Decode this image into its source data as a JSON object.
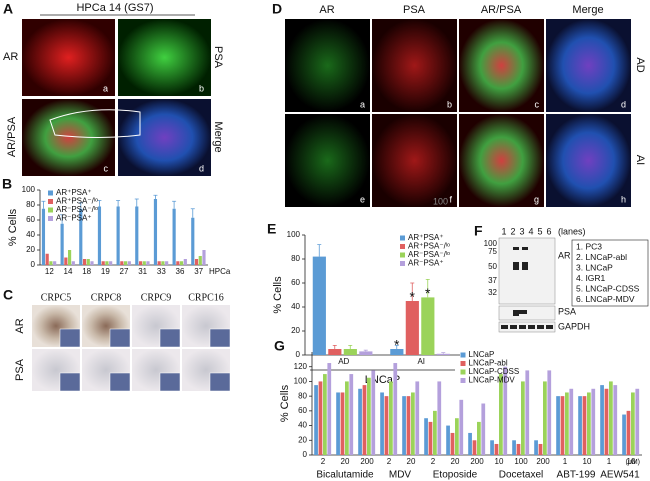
{
  "panels": {
    "A": {
      "letter": "A",
      "title": "HPCa 14 (GS7)",
      "row_labels": [
        "AR",
        "AR/PSA"
      ],
      "col_labels": [
        "PSA",
        "Merge"
      ],
      "sub_labels": [
        "a",
        "b",
        "c",
        "d"
      ]
    },
    "C": {
      "letter": "C",
      "col_labels": [
        "CRPC5",
        "CRPC8",
        "CRPC9",
        "CRPC16"
      ],
      "row_labels": [
        "AR",
        "PSA"
      ]
    },
    "D": {
      "letter": "D",
      "col_labels": [
        "AR",
        "PSA",
        "AR/PSA",
        "Merge"
      ],
      "row_labels": [
        "AD",
        "AI"
      ],
      "sub_labels": [
        "a",
        "b",
        "c",
        "d",
        "e",
        "f",
        "g",
        "h"
      ],
      "scale_text": "100"
    },
    "F": {
      "letter": "F",
      "lanes": [
        "1",
        "2",
        "3",
        "4",
        "5",
        "6"
      ],
      "lanes_caption": "(lanes)",
      "markers": [
        "100",
        "75",
        "50",
        "37",
        "32"
      ],
      "bands": [
        "AR",
        "PSA",
        "GAPDH"
      ],
      "legend": [
        "1. PC3",
        "2. LNCaP-abl",
        "3. LNCaP",
        "4. IGR1",
        "5. LNCaP-CDSS",
        "6. LNCaP-MDV"
      ]
    }
  },
  "chart_data": [
    {
      "type": "bar",
      "panel_letter": "B",
      "ylabel": "% Cells",
      "xlabel": "HPCa",
      "legend": "upper left",
      "categories": [
        "12",
        "14",
        "18",
        "19",
        "27",
        "31",
        "33",
        "36",
        "37"
      ],
      "ylim": [
        0,
        100
      ],
      "yticks": [
        0,
        20,
        40,
        60,
        80,
        100
      ],
      "series": [
        {
          "name": "AR⁺PSA⁺",
          "color": "#5b9bd5",
          "values": [
            75,
            55,
            75,
            78,
            78,
            78,
            88,
            75,
            63
          ],
          "errors": [
            10,
            12,
            8,
            8,
            8,
            10,
            5,
            10,
            12
          ]
        },
        {
          "name": "AR⁺PSA⁻/ˡᵒ",
          "color": "#e06060",
          "values": [
            15,
            10,
            8,
            5,
            5,
            5,
            5,
            5,
            8
          ]
        },
        {
          "name": "AR⁻PSA⁻/ˡᵒ",
          "color": "#9bd35a",
          "values": [
            5,
            20,
            8,
            5,
            5,
            5,
            5,
            5,
            12
          ]
        },
        {
          "name": "AR⁻PSA⁺",
          "color": "#b4a0dc",
          "values": [
            5,
            5,
            5,
            5,
            5,
            5,
            5,
            8,
            20
          ]
        }
      ]
    },
    {
      "type": "bar",
      "panel_letter": "E",
      "ylabel": "% Cells",
      "xlabel": "LNCaP",
      "legend": "upper right",
      "categories": [
        "AD",
        "AI"
      ],
      "ylim": [
        0,
        100
      ],
      "yticks": [
        0,
        20,
        40,
        60,
        80,
        100
      ],
      "series": [
        {
          "name": "AR⁺PSA⁺",
          "color": "#5b9bd5",
          "values": [
            82,
            5
          ],
          "errors": [
            10,
            3
          ],
          "annotations": [
            null,
            "*"
          ]
        },
        {
          "name": "AR⁺PSA⁻/ˡᵒ",
          "color": "#e06060",
          "values": [
            5,
            45
          ],
          "errors": [
            3,
            15
          ],
          "annotations": [
            null,
            "*"
          ]
        },
        {
          "name": "AR⁻PSA⁻/ˡᵒ",
          "color": "#9bd35a",
          "values": [
            5,
            48
          ],
          "errors": [
            3,
            15
          ],
          "annotations": [
            null,
            "*"
          ]
        },
        {
          "name": "AR⁻PSA⁺",
          "color": "#b4a0dc",
          "values": [
            3,
            1
          ],
          "errors": [
            1,
            1
          ],
          "annotations": [
            null,
            null
          ]
        }
      ]
    },
    {
      "type": "bar",
      "panel_letter": "G",
      "ylabel": "% Cells",
      "unit_label": "(μM)",
      "legend": "upper center",
      "groups": [
        {
          "label": "Bicalutamide",
          "categories": [
            "2",
            "20",
            "200"
          ]
        },
        {
          "label": "MDV",
          "categories": [
            "2",
            "20"
          ]
        },
        {
          "label": "Etoposide",
          "categories": [
            "2",
            "20",
            "200"
          ]
        },
        {
          "label": "Docetaxel",
          "categories": [
            "10",
            "100",
            "200"
          ]
        },
        {
          "label": "ABT-199",
          "categories": [
            "1",
            "10"
          ]
        },
        {
          "label": "AEW541",
          "categories": [
            "1",
            "10"
          ]
        }
      ],
      "ylim": [
        0,
        140
      ],
      "yticks": [
        0,
        20,
        40,
        60,
        80,
        100,
        120
      ],
      "series": [
        {
          "name": "LNCaP",
          "color": "#5b9bd5",
          "values": [
            95,
            85,
            90,
            85,
            80,
            50,
            40,
            30,
            20,
            20,
            20,
            80,
            80,
            95,
            55
          ]
        },
        {
          "name": "LNCaP-abl",
          "color": "#e06060",
          "values": [
            100,
            85,
            95,
            80,
            80,
            45,
            30,
            20,
            15,
            15,
            15,
            80,
            80,
            90,
            60
          ]
        },
        {
          "name": "LNCaP-CDSS",
          "color": "#9bd35a",
          "values": [
            110,
            100,
            105,
            100,
            85,
            60,
            50,
            45,
            110,
            100,
            100,
            85,
            85,
            100,
            85
          ]
        },
        {
          "name": "LNCaP-MDV",
          "color": "#b4a0dc",
          "values": [
            125,
            110,
            115,
            125,
            100,
            100,
            75,
            70,
            120,
            115,
            115,
            90,
            90,
            95,
            90
          ]
        }
      ]
    }
  ]
}
